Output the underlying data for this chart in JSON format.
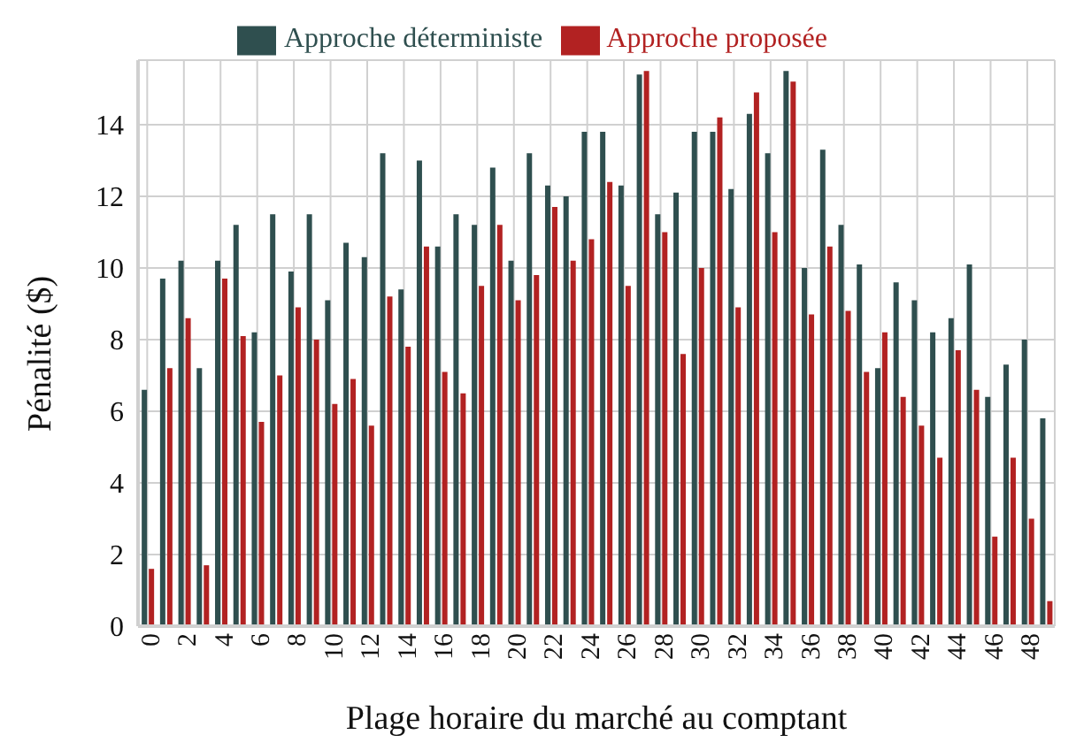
{
  "chart_data": {
    "type": "bar",
    "xlabel": "Plage horaire du marché au comptant",
    "ylabel": "Pénalité ($)",
    "categories": [
      "0",
      null,
      "2",
      null,
      "4",
      null,
      "6",
      null,
      "8",
      null,
      "10",
      null,
      "12",
      null,
      "14",
      null,
      "16",
      null,
      "18",
      null,
      "20",
      null,
      "22",
      null,
      "24",
      null,
      "26",
      null,
      "28",
      null,
      "30",
      null,
      "32",
      null,
      "34",
      null,
      "36",
      null,
      "38",
      null,
      "40",
      null,
      "42",
      null,
      "44",
      null,
      "46",
      null,
      "48",
      null
    ],
    "series": [
      {
        "name": "Approche déterministe",
        "color": "#2f4f4f",
        "values": [
          6.6,
          9.7,
          10.2,
          7.2,
          10.2,
          11.2,
          8.2,
          11.5,
          9.9,
          11.5,
          9.1,
          10.7,
          10.3,
          13.2,
          9.4,
          13.0,
          10.6,
          11.5,
          11.2,
          12.8,
          10.2,
          13.2,
          12.3,
          12.0,
          13.8,
          13.8,
          12.3,
          15.4,
          11.5,
          12.1,
          13.8,
          13.8,
          12.2,
          14.3,
          13.2,
          15.5,
          10.0,
          13.3,
          11.2,
          10.1,
          7.2,
          9.6,
          9.1,
          8.2,
          8.6,
          10.1,
          6.4,
          7.3,
          8.0,
          5.8
        ]
      },
      {
        "name": "Approche proposée",
        "color": "#b22222",
        "values": [
          1.6,
          7.2,
          8.6,
          1.7,
          9.7,
          8.1,
          5.7,
          7.0,
          8.9,
          8.0,
          6.2,
          6.9,
          5.6,
          9.2,
          7.8,
          10.6,
          7.1,
          6.5,
          9.5,
          11.2,
          9.1,
          9.8,
          11.7,
          10.2,
          10.8,
          12.4,
          9.5,
          15.5,
          11.0,
          7.6,
          10.0,
          14.2,
          8.9,
          14.9,
          11.0,
          15.2,
          8.7,
          10.6,
          8.8,
          7.1,
          8.2,
          6.4,
          5.6,
          4.7,
          7.7,
          6.6,
          2.5,
          4.7,
          3.0,
          0.7
        ]
      }
    ],
    "ylim": [
      0,
      15.8
    ],
    "yticks": [
      0,
      2,
      4,
      6,
      8,
      10,
      12,
      14
    ],
    "grid": true,
    "legend": "top"
  }
}
